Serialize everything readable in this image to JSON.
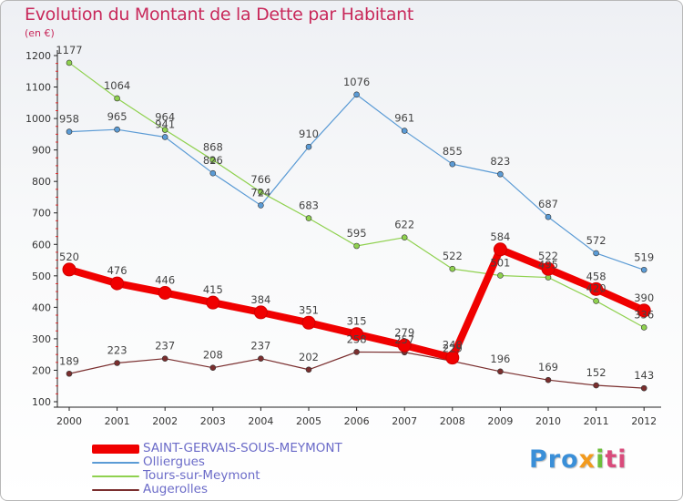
{
  "chart_data": {
    "type": "line",
    "title": "Evolution du Montant de la Dette par Habitant",
    "subtitle": "(en €)",
    "xlabel": "",
    "ylabel": "",
    "ylim": [
      100,
      1200
    ],
    "yticks": [
      100,
      200,
      300,
      400,
      500,
      600,
      700,
      800,
      900,
      1000,
      1100,
      1200
    ],
    "categories": [
      "2000",
      "2001",
      "2002",
      "2003",
      "2004",
      "2005",
      "2006",
      "2007",
      "2008",
      "2009",
      "2010",
      "2011",
      "2012"
    ],
    "grid": false,
    "legend_position": "bottom-left",
    "series": [
      {
        "name": "Olliergues",
        "color": "#5b9bd5",
        "values": [
          958,
          965,
          941,
          826,
          724,
          910,
          1076,
          961,
          855,
          823,
          687,
          572,
          519
        ],
        "labels": [
          "958",
          "965",
          "941",
          "826",
          "724",
          "910",
          "1076",
          "961",
          "855",
          "823",
          "687",
          "572",
          "519"
        ]
      },
      {
        "name": "Tours-sur-Meymont",
        "color": "#8fd14f",
        "values": [
          1177,
          1064,
          964,
          868,
          766,
          683,
          595,
          622,
          522,
          501,
          495,
          420,
          336
        ],
        "labels": [
          "1177",
          "1064",
          "964",
          "868",
          "766",
          "683",
          "595",
          "622",
          "522",
          "501",
          "495",
          "420",
          "336"
        ]
      },
      {
        "name": "Augerolles",
        "color": "#7a2e2e",
        "values": [
          189,
          223,
          237,
          208,
          237,
          202,
          258,
          257,
          229,
          196,
          169,
          152,
          143
        ],
        "labels": [
          "189",
          "223",
          "237",
          "208",
          "237",
          "202",
          "258",
          "257",
          "229",
          "196",
          "169",
          "152",
          "143"
        ]
      },
      {
        "name": "SAINT-GERVAIS-SOUS-MEYMONT",
        "color": "#f00000",
        "values": [
          520,
          476,
          446,
          415,
          384,
          351,
          315,
          279,
          240,
          584,
          522,
          458,
          390
        ],
        "labels": [
          "520",
          "476",
          "446",
          "415",
          "384",
          "351",
          "315",
          "279",
          "240",
          "584",
          "522",
          "458",
          "390"
        ]
      }
    ]
  },
  "legend": {
    "items": [
      {
        "label": "SAINT-GERVAIS-SOUS-MEYMONT",
        "color": "#f00000"
      },
      {
        "label": "Olliergues",
        "color": "#5b9bd5"
      },
      {
        "label": "Tours-sur-Meymont",
        "color": "#8fd14f"
      },
      {
        "label": "Augerolles",
        "color": "#7a2e2e"
      }
    ]
  },
  "watermark": {
    "part1": "Pro",
    "part2": "x",
    "part3": "i",
    "part4": "ti"
  }
}
